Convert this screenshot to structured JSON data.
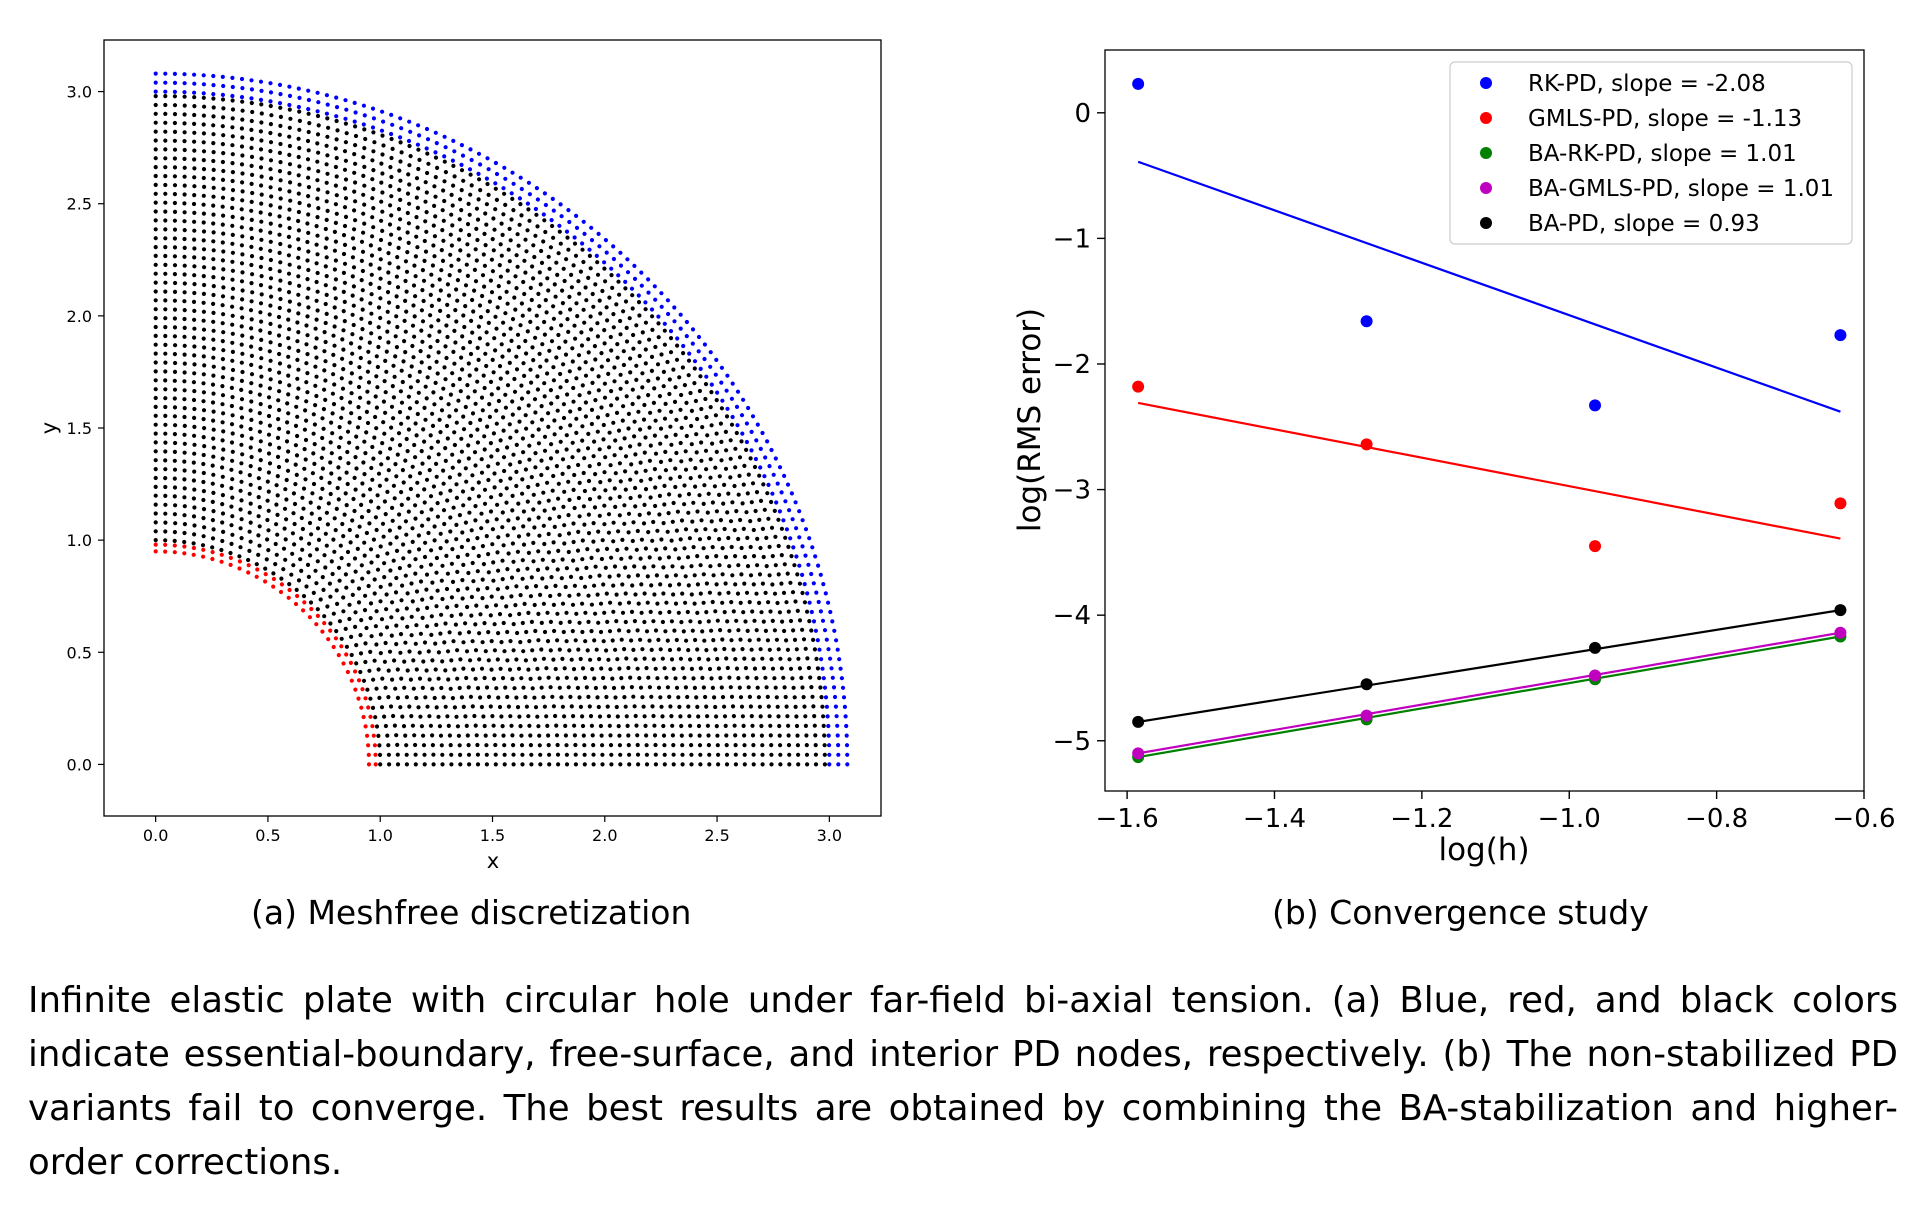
{
  "figure_a": {
    "caption": "(a) Meshfree discretization",
    "legend_text": "Blue, red, and black colors indicate essential-boundary, free-surface, and interior PD nodes",
    "colors": {
      "essential_boundary": "#0000ff",
      "free_surface": "#ff0000",
      "interior": "#000000"
    },
    "chart_data": {
      "type": "scatter",
      "xlabel": "x",
      "ylabel": "y",
      "xlim": [
        -0.23,
        3.23
      ],
      "ylim": [
        -0.23,
        3.23
      ],
      "xticks": [
        "0.0",
        "0.5",
        "1.0",
        "1.5",
        "2.0",
        "2.5",
        "3.0"
      ],
      "yticks": [
        "0.0",
        "0.5",
        "1.0",
        "1.5",
        "2.0",
        "2.5",
        "3.0"
      ],
      "tick_values": [
        0,
        0.5,
        1.0,
        1.5,
        2.0,
        2.5,
        3.0
      ],
      "domain": {
        "inner_radius": 0.98,
        "outer_radius": 3.08,
        "angle_range_deg": [
          0,
          90
        ]
      },
      "node_groups": [
        {
          "name": "free-surface",
          "color": "#ff0000",
          "radii": [
            0.95,
            0.98
          ]
        },
        {
          "name": "interior",
          "color": "#000000",
          "radius_range": [
            1.0,
            2.98
          ],
          "rings": 51
        },
        {
          "name": "essential-boundary",
          "color": "#0000ff",
          "radii": [
            3.0,
            3.04,
            3.08
          ]
        }
      ]
    }
  },
  "figure_b": {
    "caption": "(b) Convergence study",
    "chart_data": {
      "type": "scatter",
      "xlabel": "log(h)",
      "ylabel": "log(RMS error)",
      "xlim": [
        -1.63,
        -0.6
      ],
      "ylim": [
        -5.4,
        0.5
      ],
      "xticks": [
        "−1.6",
        "−1.4",
        "−1.2",
        "−1.0",
        "−0.8",
        "−0.6"
      ],
      "xtick_values": [
        -1.6,
        -1.4,
        -1.2,
        -1.0,
        -0.8,
        -0.6
      ],
      "yticks": [
        "0",
        "−1",
        "−2",
        "−3",
        "−4",
        "−5"
      ],
      "ytick_values": [
        0,
        -1,
        -2,
        -3,
        -4,
        -5
      ],
      "legend_position": "top-right",
      "x": [
        -1.585,
        -1.275,
        -0.965,
        -0.632
      ],
      "series": [
        {
          "name": "RK-PD, slope = -2.08",
          "color": "#0000ff",
          "values": [
            0.23,
            -1.66,
            -2.33,
            -1.77
          ],
          "fit": [
            -0.39,
            -2.38
          ]
        },
        {
          "name": "GMLS-PD, slope = -1.13",
          "color": "#ff0000",
          "values": [
            -2.18,
            -2.64,
            -3.45,
            -3.11
          ],
          "fit": [
            -2.31,
            -3.39
          ]
        },
        {
          "name": "BA-RK-PD, slope = 1.01",
          "color": "#008000",
          "values": [
            -5.13,
            -4.83,
            -4.51,
            -4.17
          ],
          "fit": [
            -5.13,
            -4.17
          ]
        },
        {
          "name": "BA-GMLS-PD, slope = 1.01",
          "color": "#bf00bf",
          "values": [
            -5.1,
            -4.8,
            -4.48,
            -4.14
          ],
          "fit": [
            -5.1,
            -4.14
          ]
        },
        {
          "name": "BA-PD, slope = 0.93",
          "color": "#000000",
          "values": [
            -4.85,
            -4.55,
            -4.26,
            -3.96
          ],
          "fit": [
            -4.85,
            -3.96
          ]
        }
      ]
    }
  },
  "caption": "Infinite elastic plate with circular hole under far-field bi-axial tension. (a) Blue, red, and black colors indicate essential-boundary, free-surface, and interior PD nodes, respectively. (b) The non-stabilized PD variants fail to converge.  The best results are obtained by combining the BA-stabilization and higher-order corrections."
}
